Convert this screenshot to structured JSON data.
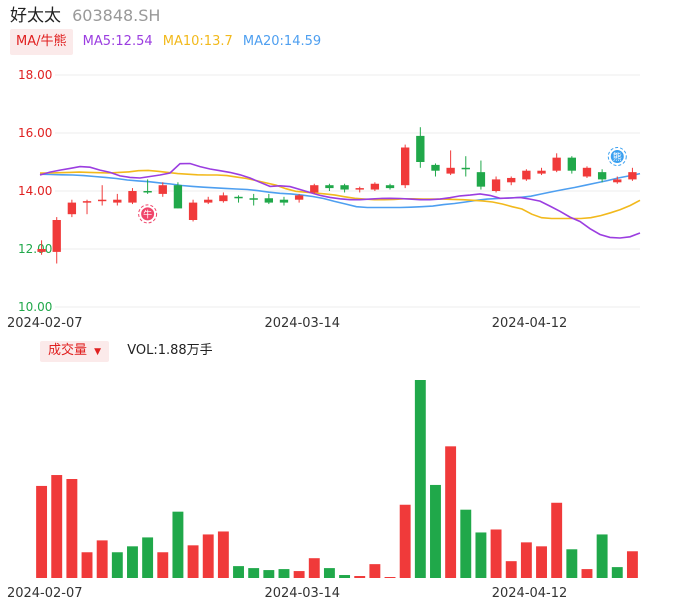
{
  "header": {
    "name": "好太太",
    "code": "603848.SH"
  },
  "ma_bar": {
    "tag": "MA/牛熊",
    "items": [
      {
        "label": "MA5:12.54",
        "color": "#9b3de0"
      },
      {
        "label": "MA10:13.7",
        "color": "#f2b91c"
      },
      {
        "label": "MA20:14.59",
        "color": "#4e9ff0"
      }
    ]
  },
  "volume_bar": {
    "tag": "成交量",
    "caret": "▼",
    "value_text": "VOL:1.88万手"
  },
  "colors": {
    "up": "#f03a3a",
    "down": "#20a84a",
    "axis_up": "#e02020",
    "axis_down": "#20a84a"
  },
  "chart_data": [
    {
      "type": "candlestick",
      "ylim": [
        10,
        18
      ],
      "y_ticks": [
        "18.00",
        "16.00",
        "14.00",
        "12.00",
        "10.00"
      ],
      "x_ticks": [
        {
          "index": 1,
          "label": "2024-02-07"
        },
        {
          "index": 18,
          "label": "2024-03-14"
        },
        {
          "index": 33,
          "label": "2024-04-12"
        }
      ],
      "markers": [
        {
          "index": 7,
          "label": "牛"
        },
        {
          "index": 38,
          "label": "熊"
        }
      ],
      "candles": [
        {
          "o": 11.9,
          "h": 12.3,
          "l": 11.8,
          "c": 12.0
        },
        {
          "o": 11.9,
          "h": 13.1,
          "l": 11.5,
          "c": 13.0
        },
        {
          "o": 13.2,
          "h": 13.7,
          "l": 13.1,
          "c": 13.6
        },
        {
          "o": 13.6,
          "h": 13.7,
          "l": 13.2,
          "c": 13.65
        },
        {
          "o": 13.65,
          "h": 14.2,
          "l": 13.5,
          "c": 13.7
        },
        {
          "o": 13.6,
          "h": 13.9,
          "l": 13.5,
          "c": 13.7
        },
        {
          "o": 13.6,
          "h": 14.1,
          "l": 13.55,
          "c": 14.0
        },
        {
          "o": 14.0,
          "h": 14.4,
          "l": 13.9,
          "c": 13.95
        },
        {
          "o": 13.9,
          "h": 14.3,
          "l": 13.8,
          "c": 14.2
        },
        {
          "o": 14.2,
          "h": 14.3,
          "l": 13.4,
          "c": 13.4
        },
        {
          "o": 13.0,
          "h": 13.7,
          "l": 12.95,
          "c": 13.6
        },
        {
          "o": 13.6,
          "h": 13.8,
          "l": 13.55,
          "c": 13.7
        },
        {
          "o": 13.65,
          "h": 13.95,
          "l": 13.6,
          "c": 13.85
        },
        {
          "o": 13.8,
          "h": 13.85,
          "l": 13.6,
          "c": 13.75
        },
        {
          "o": 13.75,
          "h": 13.9,
          "l": 13.5,
          "c": 13.7
        },
        {
          "o": 13.75,
          "h": 13.9,
          "l": 13.55,
          "c": 13.6
        },
        {
          "o": 13.7,
          "h": 13.8,
          "l": 13.5,
          "c": 13.6
        },
        {
          "o": 13.7,
          "h": 13.9,
          "l": 13.6,
          "c": 13.85
        },
        {
          "o": 13.95,
          "h": 14.25,
          "l": 13.9,
          "c": 14.2
        },
        {
          "o": 14.2,
          "h": 14.25,
          "l": 14.0,
          "c": 14.1
        },
        {
          "o": 14.2,
          "h": 14.25,
          "l": 13.95,
          "c": 14.05
        },
        {
          "o": 14.05,
          "h": 14.15,
          "l": 13.95,
          "c": 14.1
        },
        {
          "o": 14.05,
          "h": 14.3,
          "l": 14.0,
          "c": 14.25
        },
        {
          "o": 14.2,
          "h": 14.25,
          "l": 14.05,
          "c": 14.1
        },
        {
          "o": 14.2,
          "h": 15.6,
          "l": 14.1,
          "c": 15.5
        },
        {
          "o": 15.9,
          "h": 16.2,
          "l": 14.8,
          "c": 15.0
        },
        {
          "o": 14.9,
          "h": 14.95,
          "l": 14.5,
          "c": 14.7
        },
        {
          "o": 14.6,
          "h": 15.4,
          "l": 14.55,
          "c": 14.8
        },
        {
          "o": 14.8,
          "h": 15.2,
          "l": 14.5,
          "c": 14.75
        },
        {
          "o": 14.65,
          "h": 15.05,
          "l": 14.05,
          "c": 14.15
        },
        {
          "o": 14.0,
          "h": 14.5,
          "l": 13.95,
          "c": 14.4
        },
        {
          "o": 14.3,
          "h": 14.5,
          "l": 14.2,
          "c": 14.45
        },
        {
          "o": 14.4,
          "h": 14.75,
          "l": 14.35,
          "c": 14.7
        },
        {
          "o": 14.6,
          "h": 14.8,
          "l": 14.55,
          "c": 14.7
        },
        {
          "o": 14.7,
          "h": 15.3,
          "l": 14.65,
          "c": 15.15
        },
        {
          "o": 15.15,
          "h": 15.2,
          "l": 14.6,
          "c": 14.7
        },
        {
          "o": 14.5,
          "h": 14.85,
          "l": 14.45,
          "c": 14.8
        },
        {
          "o": 14.65,
          "h": 14.75,
          "l": 14.3,
          "c": 14.4
        },
        {
          "o": 14.3,
          "h": 14.5,
          "l": 14.25,
          "c": 14.4
        },
        {
          "o": 14.4,
          "h": 14.8,
          "l": 14.35,
          "c": 14.65
        }
      ],
      "ma5": [
        14.55,
        14.65,
        14.72,
        14.78,
        14.84,
        14.82,
        14.72,
        14.64,
        14.52,
        14.47,
        14.45,
        14.5,
        14.55,
        14.62,
        14.94,
        14.95,
        14.84,
        14.76,
        14.7,
        14.64,
        14.56,
        14.45,
        14.3,
        14.16,
        14.18,
        14.15,
        14.05,
        13.95,
        13.85,
        13.78,
        13.73,
        13.7,
        13.7,
        13.72,
        13.74,
        13.75,
        13.74,
        13.72,
        13.7,
        13.7,
        13.72,
        13.77,
        13.83,
        13.86,
        13.9,
        13.85,
        13.75,
        13.76,
        13.78,
        13.72,
        13.65,
        13.48,
        13.3,
        13.1,
        12.95,
        12.7,
        12.5,
        12.4,
        12.38,
        12.42,
        12.55
      ],
      "ma10": [
        14.62,
        14.62,
        14.63,
        14.64,
        14.65,
        14.64,
        14.63,
        14.62,
        14.64,
        14.66,
        14.7,
        14.71,
        14.68,
        14.64,
        14.6,
        14.58,
        14.56,
        14.55,
        14.55,
        14.53,
        14.48,
        14.43,
        14.36,
        14.28,
        14.2,
        14.08,
        13.99,
        13.96,
        13.93,
        13.9,
        13.86,
        13.8,
        13.75,
        13.72,
        13.7,
        13.7,
        13.71,
        13.73,
        13.73,
        13.72,
        13.72,
        13.72,
        13.71,
        13.7,
        13.68,
        13.66,
        13.62,
        13.55,
        13.46,
        13.38,
        13.2,
        13.08,
        13.05,
        13.05,
        13.05,
        13.05,
        13.08,
        13.15,
        13.25,
        13.36,
        13.5,
        13.68
      ],
      "ma20": [
        14.58,
        14.57,
        14.56,
        14.55,
        14.53,
        14.5,
        14.47,
        14.43,
        14.38,
        14.35,
        14.32,
        14.28,
        14.24,
        14.19,
        14.16,
        14.13,
        14.11,
        14.09,
        14.07,
        14.05,
        14.01,
        13.96,
        13.92,
        13.9,
        13.86,
        13.81,
        13.74,
        13.64,
        13.55,
        13.46,
        13.43,
        13.43,
        13.43,
        13.43,
        13.44,
        13.46,
        13.48,
        13.53,
        13.57,
        13.62,
        13.68,
        13.72,
        13.74,
        13.76,
        13.78,
        13.82,
        13.9,
        13.98,
        14.05,
        14.12,
        14.2,
        14.28,
        14.36,
        14.45,
        14.52,
        14.6
      ]
    },
    {
      "type": "bar",
      "ylim": [
        0,
        1
      ],
      "x_ticks": [
        {
          "index": 1,
          "label": "2024-02-07"
        },
        {
          "index": 18,
          "label": "2024-03-14"
        },
        {
          "index": 33,
          "label": "2024-04-12"
        }
      ],
      "values": [
        0.465,
        0.52,
        0.5,
        0.13,
        0.19,
        0.13,
        0.16,
        0.205,
        0.13,
        0.335,
        0.165,
        0.22,
        0.235,
        0.06,
        0.05,
        0.04,
        0.045,
        0.035,
        0.1,
        0.05,
        0.015,
        0.01,
        0.07,
        0.0,
        0.37,
        1.0,
        0.47,
        0.665,
        0.345,
        0.23,
        0.245,
        0.085,
        0.18,
        0.16,
        0.38,
        0.145,
        0.045,
        0.22,
        0.055,
        0.135
      ],
      "directions": [
        "up",
        "up",
        "up",
        "up",
        "up",
        "down",
        "down",
        "down",
        "up",
        "down",
        "up",
        "up",
        "up",
        "down",
        "down",
        "down",
        "down",
        "up",
        "up",
        "down",
        "down",
        "up",
        "up",
        "up",
        "up",
        "down",
        "down",
        "up",
        "down",
        "down",
        "up",
        "up",
        "up",
        "up",
        "up",
        "down",
        "up",
        "down",
        "down",
        "up"
      ]
    }
  ]
}
